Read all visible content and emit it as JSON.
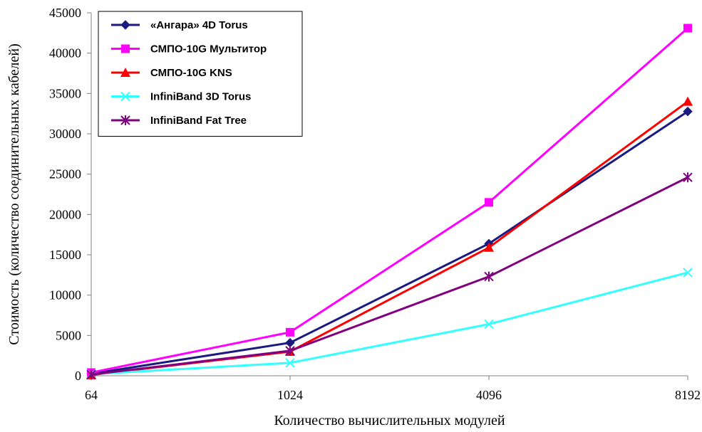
{
  "chart_data": {
    "type": "line",
    "xlabel": "Количество вычислительных модулей",
    "ylabel": "Стоимость (количество соединительных кабелей)",
    "categories": [
      "64",
      "1024",
      "4096",
      "8192"
    ],
    "ylim": [
      0,
      45000
    ],
    "yticks": [
      "0",
      "5000",
      "10000",
      "15000",
      "20000",
      "25000",
      "30000",
      "35000",
      "40000",
      "45000"
    ],
    "legend_position": "top-left",
    "grid": false,
    "series": [
      {
        "name": "«Ангара» 4D Torus",
        "color": "#1a1a80",
        "marker": "diamond",
        "values": [
          256,
          4096,
          16384,
          32768
        ]
      },
      {
        "name": "СМПО-10G Мультитор",
        "color": "#ff00ff",
        "marker": "square",
        "values": [
          400,
          5400,
          21500,
          43100
        ]
      },
      {
        "name": "СМПО-10G KNS",
        "color": "#ff0000",
        "marker": "triangle",
        "values": [
          100,
          3000,
          15900,
          34000
        ]
      },
      {
        "name": "InfiniBand 3D Torus",
        "color": "#33ffff",
        "marker": "x",
        "values": [
          200,
          1600,
          6400,
          12800
        ]
      },
      {
        "name": "InfiniBand Fat Tree",
        "color": "#800080",
        "marker": "star",
        "values": [
          150,
          3100,
          12300,
          24600
        ]
      }
    ]
  }
}
